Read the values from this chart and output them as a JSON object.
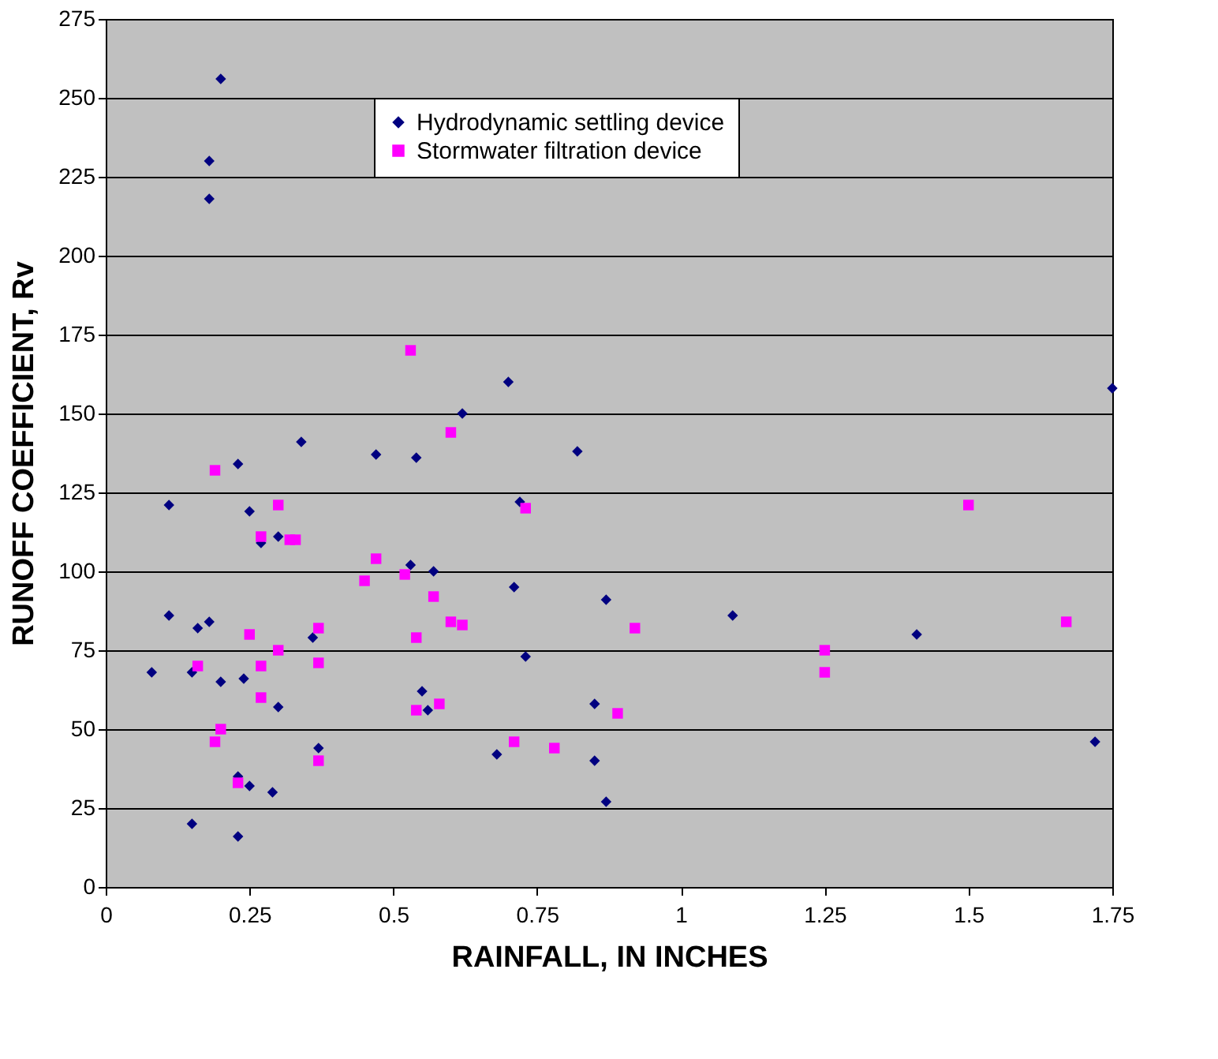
{
  "chart_data": {
    "type": "scatter",
    "xlabel": "RAINFALL, IN INCHES",
    "ylabel": "RUNOFF COEFFICIENT, Rv",
    "xlim": [
      0,
      1.75
    ],
    "xticks": [
      0,
      0.25,
      0.5,
      0.75,
      1,
      1.25,
      1.5,
      1.75
    ],
    "ylim": [
      0,
      275
    ],
    "yticks": [
      0,
      25,
      50,
      75,
      100,
      125,
      150,
      175,
      200,
      225,
      250,
      275
    ],
    "grid": "y",
    "legend": "top",
    "series": [
      {
        "name": "Hydrodynamic settling device",
        "color": "#000080",
        "marker": "diamond",
        "x": [
          0.2,
          0.18,
          0.18,
          0.23,
          0.34,
          0.47,
          0.54,
          0.62,
          0.11,
          0.25,
          0.27,
          0.3,
          0.53,
          0.57,
          0.11,
          0.16,
          0.18,
          0.36,
          0.08,
          0.15,
          0.2,
          0.24,
          0.3,
          0.55,
          0.56,
          0.37,
          0.23,
          0.25,
          0.29,
          0.15,
          0.23,
          0.68,
          0.7,
          1.75,
          0.82,
          0.72,
          0.71,
          0.87,
          1.09,
          1.41,
          0.73,
          0.85,
          0.85,
          0.87,
          1.72
        ],
        "values": [
          256,
          230,
          218,
          134,
          141,
          137,
          136,
          150,
          121,
          119,
          109,
          111,
          102,
          100,
          86,
          82,
          84,
          79,
          68,
          68,
          65,
          66,
          57,
          62,
          56,
          44,
          35,
          32,
          30,
          20,
          16,
          42,
          160,
          158,
          138,
          122,
          95,
          91,
          86,
          80,
          73,
          58,
          40,
          27,
          46
        ]
      },
      {
        "name": "Stormwater filtration device",
        "color": "#ff00ff",
        "marker": "square",
        "x": [
          0.19,
          0.53,
          0.6,
          0.3,
          0.27,
          0.32,
          0.33,
          0.47,
          0.45,
          0.52,
          0.57,
          0.6,
          0.62,
          0.54,
          0.25,
          0.37,
          0.3,
          0.16,
          0.27,
          0.37,
          0.27,
          0.54,
          0.58,
          0.2,
          0.19,
          0.37,
          0.23,
          0.73,
          1.5,
          0.92,
          1.25,
          1.25,
          1.67,
          0.89,
          0.71,
          0.78
        ],
        "values": [
          132,
          170,
          144,
          121,
          111,
          110,
          110,
          104,
          97,
          99,
          92,
          84,
          83,
          79,
          80,
          82,
          75,
          70,
          70,
          71,
          60,
          56,
          58,
          50,
          46,
          40,
          33,
          120,
          121,
          82,
          75,
          68,
          84,
          55,
          46,
          44
        ]
      }
    ]
  }
}
